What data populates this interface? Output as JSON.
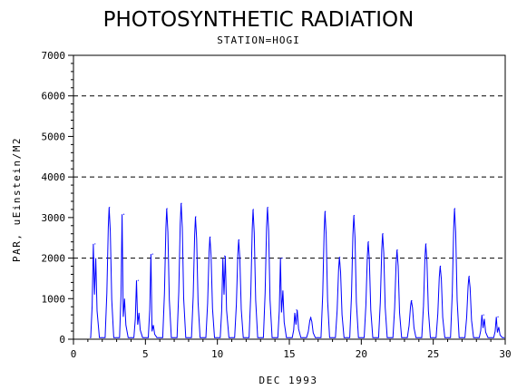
{
  "chart_data": {
    "type": "line",
    "title": "PHOTOSYNTHETIC RADIATION",
    "subtitle": "STATION=HOGI",
    "xlabel": "DEC 1993",
    "ylabel": "PAR, uEinstein/M2",
    "xlim": [
      0,
      30
    ],
    "ylim": [
      0,
      7000
    ],
    "x_ticks": [
      "0",
      "5",
      "10",
      "15",
      "20",
      "25",
      "30"
    ],
    "y_ticks": [
      "0",
      "1000",
      "2000",
      "3000",
      "4000",
      "5000",
      "6000",
      "7000"
    ],
    "reference_lines": [
      2000,
      4000,
      6000
    ],
    "grid": false,
    "line_color": "#0000ff",
    "daily_peaks": [
      {
        "day": 1.5,
        "peaks": [
          2350,
          2000
        ]
      },
      {
        "day": 2.5,
        "peaks": [
          3250
        ]
      },
      {
        "day": 3.5,
        "peaks": [
          3080,
          1000
        ]
      },
      {
        "day": 4.5,
        "peaks": [
          1450,
          650
        ]
      },
      {
        "day": 5.5,
        "peaks": [
          2100,
          350
        ]
      },
      {
        "day": 6.5,
        "peaks": [
          3220
        ]
      },
      {
        "day": 7.5,
        "peaks": [
          3350
        ]
      },
      {
        "day": 8.5,
        "peaks": [
          3020
        ]
      },
      {
        "day": 9.5,
        "peaks": [
          2520
        ]
      },
      {
        "day": 10.5,
        "peaks": [
          2000,
          2050
        ]
      },
      {
        "day": 11.5,
        "peaks": [
          2450
        ]
      },
      {
        "day": 12.5,
        "peaks": [
          3200
        ]
      },
      {
        "day": 13.5,
        "peaks": [
          3250
        ]
      },
      {
        "day": 14.5,
        "peaks": [
          2000,
          1200
        ]
      },
      {
        "day": 15.5,
        "peaks": [
          650,
          720
        ]
      },
      {
        "day": 16.5,
        "peaks": [
          530
        ]
      },
      {
        "day": 17.5,
        "peaks": [
          3150
        ]
      },
      {
        "day": 18.5,
        "peaks": [
          2020
        ]
      },
      {
        "day": 19.5,
        "peaks": [
          3050
        ]
      },
      {
        "day": 20.5,
        "peaks": [
          2400
        ]
      },
      {
        "day": 21.5,
        "peaks": [
          2600
        ]
      },
      {
        "day": 22.5,
        "peaks": [
          2200
        ]
      },
      {
        "day": 23.5,
        "peaks": [
          950
        ]
      },
      {
        "day": 24.5,
        "peaks": [
          2350
        ]
      },
      {
        "day": 25.5,
        "peaks": [
          1800
        ]
      },
      {
        "day": 26.5,
        "peaks": [
          3220
        ]
      },
      {
        "day": 27.5,
        "peaks": [
          1550
        ]
      },
      {
        "day": 28.5,
        "peaks": [
          600,
          500
        ]
      },
      {
        "day": 29.5,
        "peaks": [
          550,
          300
        ]
      }
    ]
  }
}
